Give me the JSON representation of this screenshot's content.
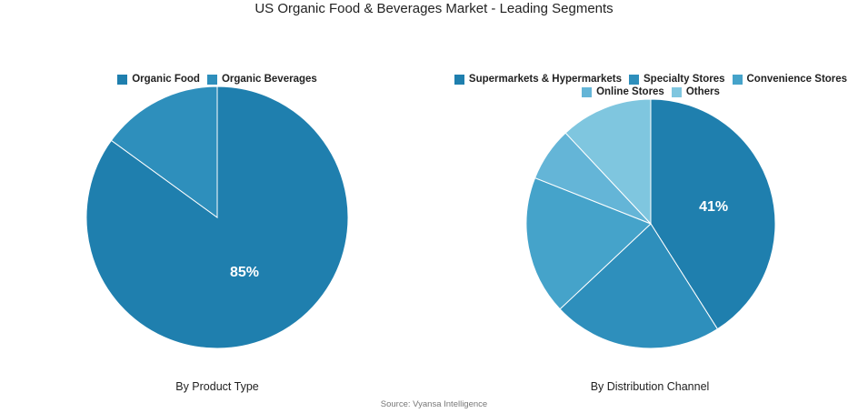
{
  "title": "US Organic Food & Beverages Market - Leading Segments",
  "source": "Source: Vyansa Intelligence",
  "colors": {
    "c1": "#1f7fae",
    "c2": "#2e8fbc",
    "c3": "#45a3ca",
    "c4": "#64b5d7",
    "c5": "#7fc6df"
  },
  "chart_data": [
    {
      "type": "pie",
      "title": "By Product Type",
      "series": [
        {
          "name": "Organic Food",
          "value": 85,
          "label": "85%",
          "color": "#1f7fae"
        },
        {
          "name": "Organic Beverages",
          "value": 15,
          "label": "",
          "color": "#2e8fbc"
        }
      ],
      "legend": "top"
    },
    {
      "type": "pie",
      "title": "By Distribution Channel",
      "series": [
        {
          "name": "Supermarkets & Hypermarkets",
          "value": 41,
          "label": "41%",
          "color": "#1f7fae"
        },
        {
          "name": "Specialty Stores",
          "value": 22,
          "label": "",
          "color": "#2e8fbc"
        },
        {
          "name": "Convenience Stores",
          "value": 18,
          "label": "",
          "color": "#45a3ca"
        },
        {
          "name": "Online Stores",
          "value": 7,
          "label": "",
          "color": "#64b5d7"
        },
        {
          "name": "Others",
          "value": 12,
          "label": "",
          "color": "#7fc6df"
        }
      ],
      "legend": "top"
    }
  ]
}
